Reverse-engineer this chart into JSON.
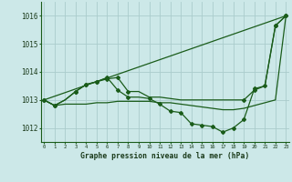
{
  "title": "Graphe pression niveau de la mer (hPa)",
  "background_color": "#cce8e8",
  "grid_color": "#aacccc",
  "line_color": "#1a5c1a",
  "ylim": [
    1011.5,
    1016.5
  ],
  "yticks": [
    1012,
    1013,
    1014,
    1015,
    1016
  ],
  "xlim": [
    -0.3,
    23.3
  ],
  "line_straight": {
    "x": [
      0,
      23
    ],
    "y": [
      1013.0,
      1016.0
    ]
  },
  "line_upper": {
    "x": [
      0,
      1,
      2,
      3,
      4,
      5,
      6,
      7,
      8,
      9,
      10,
      11,
      12,
      13,
      14,
      15,
      16,
      17,
      18,
      19,
      20,
      21,
      22,
      23
    ],
    "y": [
      1013.0,
      1012.8,
      1013.0,
      1013.3,
      1013.55,
      1013.65,
      1013.75,
      1013.8,
      1013.3,
      1013.3,
      1013.1,
      1013.1,
      1013.05,
      1013.0,
      1013.0,
      1013.0,
      1013.0,
      1013.0,
      1013.0,
      1013.0,
      1013.35,
      1013.5,
      1015.65,
      1016.0
    ],
    "markers_x": [
      0,
      1,
      3,
      4,
      5,
      6,
      7,
      8,
      19,
      20,
      22,
      23
    ],
    "markers_y": [
      1013.0,
      1012.8,
      1013.3,
      1013.55,
      1013.65,
      1013.75,
      1013.8,
      1013.3,
      1013.0,
      1013.35,
      1015.65,
      1016.0
    ]
  },
  "line_lower_wiggly": {
    "x": [
      0,
      1,
      2,
      3,
      4,
      5,
      6,
      7,
      8,
      9,
      10,
      11,
      12,
      13,
      14,
      15,
      16,
      17,
      18,
      19,
      20,
      21,
      22,
      23
    ],
    "y": [
      1013.0,
      1012.8,
      1013.0,
      1013.3,
      1013.55,
      1013.65,
      1013.8,
      1013.35,
      1013.1,
      1013.1,
      1013.05,
      1012.85,
      1012.6,
      1012.55,
      1012.15,
      1012.1,
      1012.05,
      1011.85,
      1012.0,
      1012.3,
      1013.4,
      1013.5,
      1015.65,
      1016.0
    ],
    "markers_x": [
      0,
      1,
      3,
      4,
      5,
      6,
      7,
      8,
      10,
      11,
      12,
      13,
      14,
      15,
      16,
      17,
      18,
      19,
      20,
      21,
      22,
      23
    ],
    "markers_y": [
      1013.0,
      1012.8,
      1013.3,
      1013.55,
      1013.65,
      1013.8,
      1013.35,
      1013.1,
      1013.05,
      1012.85,
      1012.6,
      1012.55,
      1012.15,
      1012.1,
      1012.05,
      1011.85,
      1012.0,
      1012.3,
      1013.4,
      1013.5,
      1015.65,
      1016.0
    ]
  },
  "line_bottom_flat": {
    "x": [
      0,
      1,
      2,
      3,
      4,
      5,
      6,
      7,
      8,
      9,
      10,
      11,
      12,
      13,
      14,
      15,
      16,
      17,
      18,
      19,
      20,
      21,
      22,
      23
    ],
    "y": [
      1013.0,
      1012.8,
      1012.85,
      1012.85,
      1012.85,
      1012.9,
      1012.9,
      1012.95,
      1012.95,
      1012.95,
      1012.95,
      1012.9,
      1012.9,
      1012.85,
      1012.8,
      1012.75,
      1012.7,
      1012.65,
      1012.65,
      1012.7,
      1012.8,
      1012.9,
      1013.0,
      1016.0
    ]
  }
}
